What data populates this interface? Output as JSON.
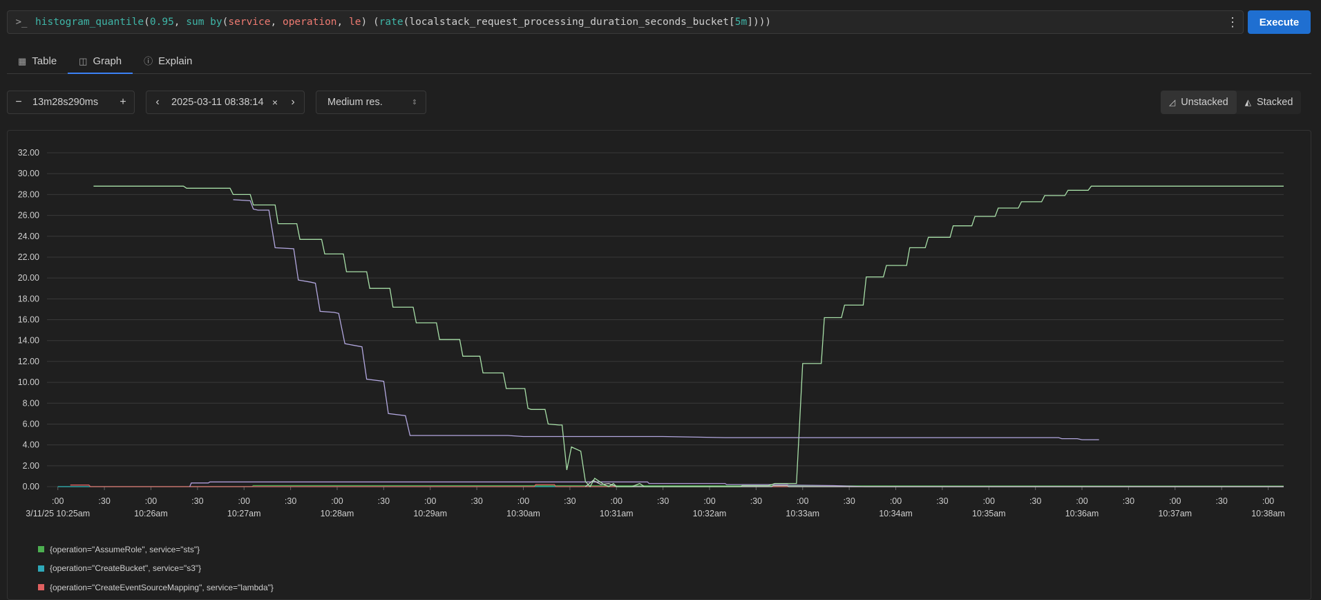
{
  "query": {
    "prompt_icon": "terminal-prompt-icon",
    "fn": "histogram_quantile",
    "open1": "(",
    "q": "0.95",
    "comma1": ", ",
    "agg": "sum by",
    "open2": "(",
    "lbl1": "service",
    "comma2": ", ",
    "lbl2": "operation",
    "comma3": ", ",
    "lbl3": "le",
    "close2": ") (",
    "rate": "rate",
    "open3": "(",
    "metric": "localstack_request_processing_duration_seconds_bucket",
    "br_open": "[",
    "dur": "5m",
    "br_close": "]",
    "close3": ")))"
  },
  "execute_label": "Execute",
  "tabs": [
    {
      "label": "Table",
      "icon": "table-icon"
    },
    {
      "label": "Graph",
      "icon": "graph-icon",
      "active": true
    },
    {
      "label": "Explain",
      "icon": "info-icon"
    }
  ],
  "controls": {
    "range": "13m28s290ms",
    "end_time": "2025-03-11 08:38:14",
    "resolution": "Medium res.",
    "unstacked": "Unstacked",
    "stacked": "Stacked"
  },
  "chart_data": {
    "type": "line",
    "ylim": [
      0,
      32
    ],
    "y_ticks": [
      "0.00",
      "2.00",
      "4.00",
      "6.00",
      "8.00",
      "10.00",
      "12.00",
      "14.00",
      "16.00",
      "18.00",
      "20.00",
      "22.00",
      "24.00",
      "26.00",
      "28.00",
      "30.00",
      "32.00"
    ],
    "x_ticks": [
      {
        "t": 0,
        "major": ":00",
        "minor": "3/11/25 10:25am"
      },
      {
        "t": 30,
        "major": ":30",
        "minor": ""
      },
      {
        "t": 60,
        "major": ":00",
        "minor": "10:26am"
      },
      {
        "t": 90,
        "major": ":30",
        "minor": ""
      },
      {
        "t": 120,
        "major": ":00",
        "minor": "10:27am"
      },
      {
        "t": 150,
        "major": ":30",
        "minor": ""
      },
      {
        "t": 180,
        "major": ":00",
        "minor": "10:28am"
      },
      {
        "t": 210,
        "major": ":30",
        "minor": ""
      },
      {
        "t": 240,
        "major": ":00",
        "minor": "10:29am"
      },
      {
        "t": 270,
        "major": ":30",
        "minor": ""
      },
      {
        "t": 300,
        "major": ":00",
        "minor": "10:30am"
      },
      {
        "t": 330,
        "major": ":30",
        "minor": ""
      },
      {
        "t": 360,
        "major": ":00",
        "minor": "10:31am"
      },
      {
        "t": 390,
        "major": ":30",
        "minor": ""
      },
      {
        "t": 420,
        "major": ":00",
        "minor": "10:32am"
      },
      {
        "t": 450,
        "major": ":30",
        "minor": ""
      },
      {
        "t": 480,
        "major": ":00",
        "minor": "10:33am"
      },
      {
        "t": 510,
        "major": ":30",
        "minor": ""
      },
      {
        "t": 540,
        "major": ":00",
        "minor": "10:34am"
      },
      {
        "t": 570,
        "major": ":30",
        "minor": ""
      },
      {
        "t": 600,
        "major": ":00",
        "minor": "10:35am"
      },
      {
        "t": 630,
        "major": ":30",
        "minor": ""
      },
      {
        "t": 660,
        "major": ":00",
        "minor": "10:36am"
      },
      {
        "t": 690,
        "major": ":30",
        "minor": ""
      },
      {
        "t": 720,
        "major": ":00",
        "minor": "10:37am"
      },
      {
        "t": 750,
        "major": ":30",
        "minor": ""
      },
      {
        "t": 780,
        "major": ":00",
        "minor": "10:38am"
      }
    ],
    "xlim": [
      -7,
      790
    ],
    "series": [
      {
        "name": "{operation=\"AssumeRole\", service=\"sts\"}",
        "color": "#4caf50",
        "legend": true,
        "points": [
          [
            0,
            0
          ],
          [
            125,
            0
          ],
          [
            126,
            0.1
          ],
          [
            790,
            0.05
          ]
        ]
      },
      {
        "name": "{operation=\"CreateBucket\", service=\"s3\"}",
        "color": "#2ea8b8",
        "legend": true,
        "points": [
          [
            0,
            0
          ],
          [
            790,
            0
          ]
        ]
      },
      {
        "name": "{operation=\"CreateEventSourceMapping\", service=\"lambda\"}",
        "color": "#e06060",
        "legend": true,
        "points": [
          [
            8,
            0.15
          ],
          [
            20,
            0.15
          ],
          [
            21,
            0
          ],
          [
            307,
            0
          ],
          [
            308,
            0.2
          ],
          [
            320,
            0.2
          ],
          [
            321,
            0
          ],
          [
            790,
            0
          ]
        ]
      },
      {
        "name": "",
        "color": "#b19cd9",
        "legend": false,
        "points": [
          [
            85,
            0
          ],
          [
            86,
            0.35
          ],
          [
            97,
            0.35
          ],
          [
            98,
            0.45
          ],
          [
            170,
            0.45
          ],
          [
            300,
            0.45
          ],
          [
            380,
            0.45
          ],
          [
            381,
            0.3
          ],
          [
            430,
            0.3
          ],
          [
            431,
            0.2
          ],
          [
            470,
            0.2
          ],
          [
            471,
            0.15
          ],
          [
            500,
            0.1
          ],
          [
            520,
            0
          ],
          [
            790,
            0
          ]
        ]
      },
      {
        "name": "",
        "color": "#c8c8c8",
        "legend": false,
        "points": [
          [
            340,
            0
          ],
          [
            345,
            0.6
          ],
          [
            350,
            0.2
          ],
          [
            355,
            0.3
          ],
          [
            360,
            0
          ],
          [
            460,
            0
          ],
          [
            461,
            0.1
          ],
          [
            470,
            0.1
          ],
          [
            471,
            0
          ],
          [
            790,
            0
          ]
        ]
      },
      {
        "name": "",
        "color": "#a8e0a8",
        "legend": false,
        "points": [
          [
            23,
            28.8
          ],
          [
            81,
            28.8
          ],
          [
            83,
            28.6
          ],
          [
            111,
            28.6
          ],
          [
            113,
            28.0
          ],
          [
            124,
            28.0
          ],
          [
            126,
            27.0
          ],
          [
            140,
            27.0
          ],
          [
            142,
            25.2
          ],
          [
            154,
            25.2
          ],
          [
            156,
            23.7
          ],
          [
            170,
            23.7
          ],
          [
            172,
            22.3
          ],
          [
            184,
            22.3
          ],
          [
            186,
            20.6
          ],
          [
            199,
            20.6
          ],
          [
            201,
            19.0
          ],
          [
            214,
            19.0
          ],
          [
            216,
            17.2
          ],
          [
            229,
            17.2
          ],
          [
            231,
            15.7
          ],
          [
            244,
            15.7
          ],
          [
            246,
            14.1
          ],
          [
            259,
            14.1
          ],
          [
            261,
            12.5
          ],
          [
            272,
            12.5
          ],
          [
            274,
            10.9
          ],
          [
            287,
            10.9
          ],
          [
            289,
            9.4
          ],
          [
            301,
            9.4
          ],
          [
            303,
            7.5
          ],
          [
            305,
            7.4
          ],
          [
            314,
            7.4
          ],
          [
            316,
            6.0
          ],
          [
            323,
            5.9
          ],
          [
            325,
            5.9
          ],
          [
            328,
            1.6
          ],
          [
            331,
            3.8
          ],
          [
            337,
            3.4
          ],
          [
            340,
            0.5
          ],
          [
            343,
            0.0
          ],
          [
            346,
            0.8
          ],
          [
            352,
            0.2
          ],
          [
            355,
            0
          ],
          [
            358,
            0.3
          ],
          [
            360,
            0
          ],
          [
            370,
            0
          ],
          [
            375,
            0.3
          ],
          [
            378,
            0
          ],
          [
            420,
            0
          ],
          [
            440,
            0
          ],
          [
            441,
            0.1
          ],
          [
            458,
            0.1
          ],
          [
            462,
            0.3
          ],
          [
            470,
            0.3
          ],
          [
            476,
            0.3
          ],
          [
            480,
            11.8
          ],
          [
            492,
            11.8
          ],
          [
            494,
            16.2
          ],
          [
            505,
            16.2
          ],
          [
            507,
            17.4
          ],
          [
            519,
            17.4
          ],
          [
            521,
            20.1
          ],
          [
            532,
            20.1
          ],
          [
            534,
            21.2
          ],
          [
            547,
            21.2
          ],
          [
            549,
            22.9
          ],
          [
            559,
            22.9
          ],
          [
            561,
            23.9
          ],
          [
            575,
            23.9
          ],
          [
            577,
            25.0
          ],
          [
            589,
            25.0
          ],
          [
            591,
            25.9
          ],
          [
            604,
            25.9
          ],
          [
            606,
            26.7
          ],
          [
            619,
            26.7
          ],
          [
            621,
            27.3
          ],
          [
            634,
            27.3
          ],
          [
            636,
            27.9
          ],
          [
            649,
            27.9
          ],
          [
            651,
            28.4
          ],
          [
            664,
            28.4
          ],
          [
            666,
            28.8
          ],
          [
            790,
            28.8
          ]
        ]
      },
      {
        "name": "",
        "color": "#b3a8e0",
        "legend": false,
        "points": [
          [
            113,
            27.5
          ],
          [
            124,
            27.4
          ],
          [
            126,
            26.6
          ],
          [
            129,
            26.5
          ],
          [
            136,
            26.5
          ],
          [
            140,
            22.9
          ],
          [
            152,
            22.8
          ],
          [
            155,
            19.8
          ],
          [
            163,
            19.6
          ],
          [
            166,
            19.5
          ],
          [
            169,
            16.8
          ],
          [
            178,
            16.7
          ],
          [
            181,
            16.6
          ],
          [
            185,
            13.7
          ],
          [
            196,
            13.4
          ],
          [
            199,
            10.3
          ],
          [
            210,
            10.1
          ],
          [
            213,
            7.0
          ],
          [
            224,
            6.8
          ],
          [
            227,
            4.9
          ],
          [
            230,
            4.9
          ],
          [
            290,
            4.9
          ],
          [
            300,
            4.8
          ],
          [
            380,
            4.8
          ],
          [
            390,
            4.8
          ],
          [
            430,
            4.7
          ],
          [
            500,
            4.7
          ],
          [
            600,
            4.7
          ],
          [
            645,
            4.7
          ],
          [
            647,
            4.6
          ],
          [
            657,
            4.6
          ],
          [
            660,
            4.5
          ],
          [
            671,
            4.5
          ]
        ]
      }
    ]
  }
}
